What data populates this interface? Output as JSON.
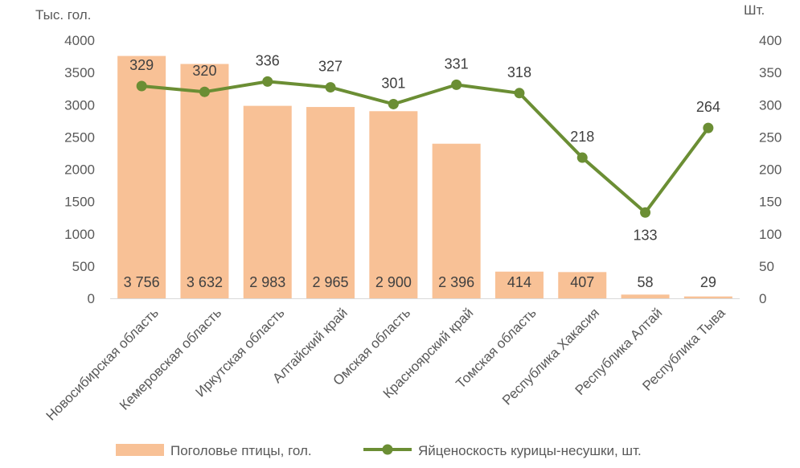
{
  "chart_data": {
    "type": "bar",
    "categories": [
      "Новосибирская область",
      "Кемеровская область",
      "Иркутская область",
      "Алтайский край",
      "Омская область",
      "Красноярский край",
      "Томская область",
      "Республика Хакасия",
      "Республика Алтай",
      "Республика Тыва"
    ],
    "series": [
      {
        "name": "Поголовье птицы, гол.",
        "type": "bar",
        "axis": "left",
        "color": "#F8C196",
        "values": [
          3756,
          3632,
          2983,
          2965,
          2900,
          2396,
          414,
          407,
          58,
          29
        ],
        "labels": [
          "3 756",
          "3 632",
          "2 983",
          "2 965",
          "2 900",
          "2 396",
          "414",
          "407",
          "58",
          "29"
        ]
      },
      {
        "name": "Яйценоскость курицы-несушки, шт.",
        "type": "line",
        "axis": "right",
        "color": "#6B8E34",
        "values": [
          329,
          320,
          336,
          327,
          301,
          331,
          318,
          218,
          133,
          264
        ],
        "labels": [
          "329",
          "320",
          "336",
          "327",
          "301",
          "331",
          "318",
          "218",
          "133",
          "264"
        ]
      }
    ],
    "y_left": {
      "label": "Тыс. гол.",
      "ylim": [
        0,
        4000
      ],
      "ticks": [
        0,
        500,
        1000,
        1500,
        2000,
        2500,
        3000,
        3500,
        4000
      ]
    },
    "y_right": {
      "label": "Шт.",
      "ylim": [
        0,
        400
      ],
      "ticks": [
        0,
        50,
        100,
        150,
        200,
        250,
        300,
        350,
        400
      ]
    },
    "grid": false,
    "legend": "bottom"
  }
}
